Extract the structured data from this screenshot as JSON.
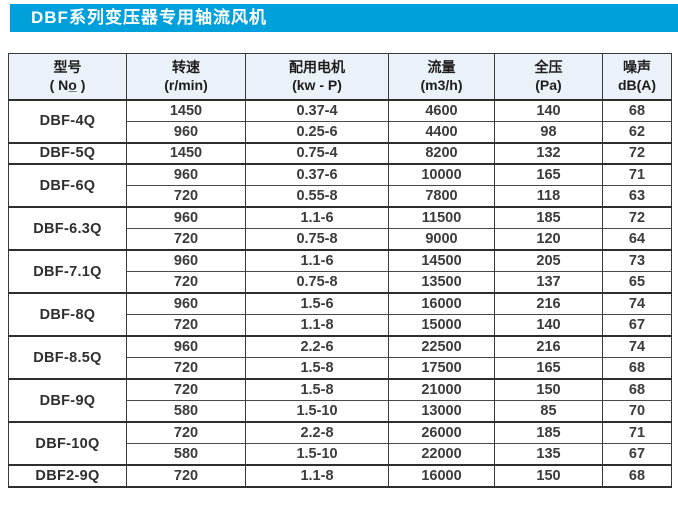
{
  "title": "DBF系列变压器专用轴流风机",
  "colors": {
    "accent_blue": "#00A0DC",
    "header_bg": "#EAF1F8",
    "border_dark": "#2e2e2e",
    "text": "#3b3b3b"
  },
  "table": {
    "headers": [
      {
        "line1": "型号",
        "line2": "( No̲ )"
      },
      {
        "line1": "转速",
        "line2": "(r/min)"
      },
      {
        "line1": "配用电机",
        "line2": "(kw - P)"
      },
      {
        "line1": "流量",
        "line2": "(m3/h)"
      },
      {
        "line1": "全压",
        "line2": "(Pa)"
      },
      {
        "line1": "噪声",
        "line2": "dB(A)"
      }
    ],
    "groups": [
      {
        "model": "DBF-4Q",
        "rows": [
          [
            "1450",
            "0.37-4",
            "4600",
            "140",
            "68"
          ],
          [
            "960",
            "0.25-6",
            "4400",
            "98",
            "62"
          ]
        ]
      },
      {
        "model": "DBF-5Q",
        "rows": [
          [
            "1450",
            "0.75-4",
            "8200",
            "132",
            "72"
          ]
        ]
      },
      {
        "model": "DBF-6Q",
        "rows": [
          [
            "960",
            "0.37-6",
            "10000",
            "165",
            "71"
          ],
          [
            "720",
            "0.55-8",
            "7800",
            "118",
            "63"
          ]
        ]
      },
      {
        "model": "DBF-6.3Q",
        "rows": [
          [
            "960",
            "1.1-6",
            "11500",
            "185",
            "72"
          ],
          [
            "720",
            "0.75-8",
            "9000",
            "120",
            "64"
          ]
        ]
      },
      {
        "model": "DBF-7.1Q",
        "rows": [
          [
            "960",
            "1.1-6",
            "14500",
            "205",
            "73"
          ],
          [
            "720",
            "0.75-8",
            "13500",
            "137",
            "65"
          ]
        ]
      },
      {
        "model": "DBF-8Q",
        "rows": [
          [
            "960",
            "1.5-6",
            "16000",
            "216",
            "74"
          ],
          [
            "720",
            "1.1-8",
            "15000",
            "140",
            "67"
          ]
        ]
      },
      {
        "model": "DBF-8.5Q",
        "rows": [
          [
            "960",
            "2.2-6",
            "22500",
            "216",
            "74"
          ],
          [
            "720",
            "1.5-8",
            "17500",
            "165",
            "68"
          ]
        ]
      },
      {
        "model": "DBF-9Q",
        "rows": [
          [
            "720",
            "1.5-8",
            "21000",
            "150",
            "68"
          ],
          [
            "580",
            "1.5-10",
            "13000",
            "85",
            "70"
          ]
        ]
      },
      {
        "model": "DBF-10Q",
        "rows": [
          [
            "720",
            "2.2-8",
            "26000",
            "185",
            "71"
          ],
          [
            "580",
            "1.5-10",
            "22000",
            "135",
            "67"
          ]
        ]
      },
      {
        "model": "DBF2-9Q",
        "rows": [
          [
            "720",
            "1.1-8",
            "16000",
            "150",
            "68"
          ]
        ]
      }
    ]
  }
}
